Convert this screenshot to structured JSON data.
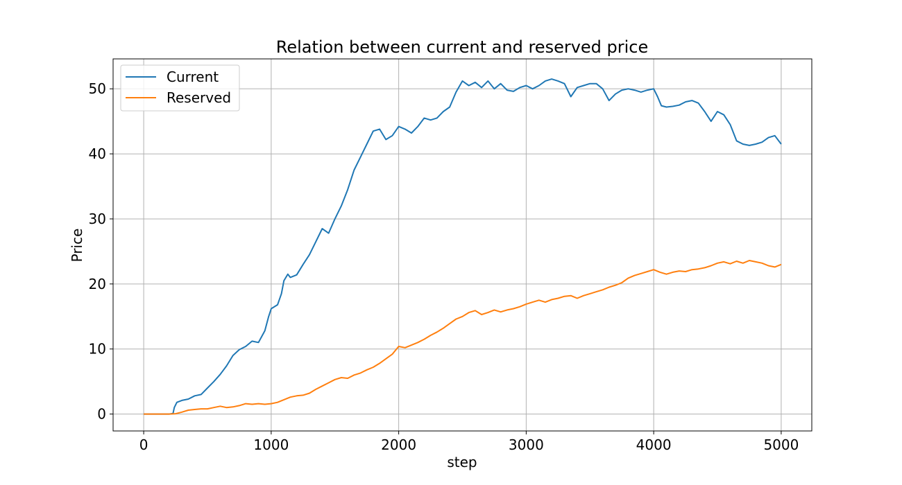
{
  "chart_data": {
    "type": "line",
    "title": "Relation between current and reserved price",
    "xlabel": "step",
    "ylabel": "Price",
    "xlim": [
      -240,
      5240
    ],
    "ylim": [
      -2.6,
      54.6
    ],
    "x_ticks": [
      0,
      1000,
      2000,
      3000,
      4000,
      5000
    ],
    "y_ticks": [
      0,
      10,
      20,
      30,
      40,
      50
    ],
    "grid": true,
    "legend_position": "top-left",
    "series": [
      {
        "name": "Current",
        "color": "#1f77b4",
        "points": [
          [
            0,
            0
          ],
          [
            100,
            0
          ],
          [
            200,
            0
          ],
          [
            230,
            0.1
          ],
          [
            240,
            1.0
          ],
          [
            260,
            1.8
          ],
          [
            300,
            2.1
          ],
          [
            350,
            2.3
          ],
          [
            400,
            2.8
          ],
          [
            450,
            3.0
          ],
          [
            500,
            4.0
          ],
          [
            550,
            5.0
          ],
          [
            600,
            6.1
          ],
          [
            650,
            7.4
          ],
          [
            700,
            9.0
          ],
          [
            750,
            9.9
          ],
          [
            800,
            10.4
          ],
          [
            850,
            11.2
          ],
          [
            900,
            11.0
          ],
          [
            950,
            12.8
          ],
          [
            980,
            15.0
          ],
          [
            1000,
            16.2
          ],
          [
            1050,
            16.8
          ],
          [
            1080,
            18.5
          ],
          [
            1100,
            20.5
          ],
          [
            1130,
            21.5
          ],
          [
            1150,
            21.0
          ],
          [
            1200,
            21.4
          ],
          [
            1250,
            23.0
          ],
          [
            1300,
            24.5
          ],
          [
            1350,
            26.5
          ],
          [
            1400,
            28.5
          ],
          [
            1450,
            27.8
          ],
          [
            1500,
            30.0
          ],
          [
            1550,
            32.0
          ],
          [
            1600,
            34.5
          ],
          [
            1650,
            37.5
          ],
          [
            1700,
            39.5
          ],
          [
            1750,
            41.5
          ],
          [
            1800,
            43.5
          ],
          [
            1850,
            43.8
          ],
          [
            1900,
            42.2
          ],
          [
            1950,
            42.8
          ],
          [
            2000,
            44.2
          ],
          [
            2050,
            43.8
          ],
          [
            2100,
            43.2
          ],
          [
            2150,
            44.2
          ],
          [
            2200,
            45.5
          ],
          [
            2250,
            45.2
          ],
          [
            2300,
            45.5
          ],
          [
            2350,
            46.5
          ],
          [
            2400,
            47.2
          ],
          [
            2450,
            49.5
          ],
          [
            2500,
            51.2
          ],
          [
            2550,
            50.5
          ],
          [
            2600,
            51.0
          ],
          [
            2650,
            50.2
          ],
          [
            2700,
            51.2
          ],
          [
            2750,
            50.0
          ],
          [
            2800,
            50.8
          ],
          [
            2850,
            49.8
          ],
          [
            2900,
            49.6
          ],
          [
            2950,
            50.2
          ],
          [
            3000,
            50.5
          ],
          [
            3050,
            50.0
          ],
          [
            3100,
            50.5
          ],
          [
            3150,
            51.2
          ],
          [
            3200,
            51.5
          ],
          [
            3250,
            51.2
          ],
          [
            3300,
            50.8
          ],
          [
            3350,
            48.8
          ],
          [
            3400,
            50.2
          ],
          [
            3450,
            50.5
          ],
          [
            3500,
            50.8
          ],
          [
            3550,
            50.8
          ],
          [
            3600,
            50.0
          ],
          [
            3650,
            48.2
          ],
          [
            3700,
            49.2
          ],
          [
            3750,
            49.8
          ],
          [
            3800,
            50.0
          ],
          [
            3850,
            49.8
          ],
          [
            3900,
            49.5
          ],
          [
            3950,
            49.8
          ],
          [
            4000,
            50.0
          ],
          [
            4030,
            48.8
          ],
          [
            4060,
            47.4
          ],
          [
            4100,
            47.2
          ],
          [
            4150,
            47.3
          ],
          [
            4200,
            47.5
          ],
          [
            4250,
            48.0
          ],
          [
            4300,
            48.2
          ],
          [
            4350,
            47.8
          ],
          [
            4400,
            46.5
          ],
          [
            4450,
            45.0
          ],
          [
            4500,
            46.5
          ],
          [
            4550,
            46.0
          ],
          [
            4600,
            44.5
          ],
          [
            4650,
            42.0
          ],
          [
            4700,
            41.5
          ],
          [
            4750,
            41.3
          ],
          [
            4800,
            41.5
          ],
          [
            4850,
            41.8
          ],
          [
            4900,
            42.5
          ],
          [
            4950,
            42.8
          ],
          [
            5000,
            41.5
          ]
        ]
      },
      {
        "name": "Reserved",
        "color": "#ff7f0e",
        "points": [
          [
            0,
            0
          ],
          [
            100,
            0
          ],
          [
            200,
            0
          ],
          [
            250,
            0.05
          ],
          [
            300,
            0.3
          ],
          [
            350,
            0.6
          ],
          [
            400,
            0.7
          ],
          [
            450,
            0.8
          ],
          [
            500,
            0.8
          ],
          [
            550,
            1.0
          ],
          [
            600,
            1.2
          ],
          [
            650,
            1.0
          ],
          [
            700,
            1.1
          ],
          [
            750,
            1.3
          ],
          [
            800,
            1.6
          ],
          [
            850,
            1.5
          ],
          [
            900,
            1.6
          ],
          [
            950,
            1.5
          ],
          [
            1000,
            1.6
          ],
          [
            1050,
            1.8
          ],
          [
            1100,
            2.2
          ],
          [
            1150,
            2.6
          ],
          [
            1200,
            2.8
          ],
          [
            1250,
            2.9
          ],
          [
            1300,
            3.2
          ],
          [
            1350,
            3.8
          ],
          [
            1400,
            4.3
          ],
          [
            1450,
            4.8
          ],
          [
            1500,
            5.3
          ],
          [
            1550,
            5.6
          ],
          [
            1600,
            5.5
          ],
          [
            1650,
            6.0
          ],
          [
            1700,
            6.3
          ],
          [
            1750,
            6.8
          ],
          [
            1800,
            7.2
          ],
          [
            1850,
            7.8
          ],
          [
            1900,
            8.5
          ],
          [
            1950,
            9.2
          ],
          [
            2000,
            10.4
          ],
          [
            2050,
            10.2
          ],
          [
            2100,
            10.6
          ],
          [
            2150,
            11.0
          ],
          [
            2200,
            11.5
          ],
          [
            2250,
            12.1
          ],
          [
            2300,
            12.6
          ],
          [
            2350,
            13.2
          ],
          [
            2400,
            13.9
          ],
          [
            2450,
            14.6
          ],
          [
            2500,
            15.0
          ],
          [
            2550,
            15.6
          ],
          [
            2600,
            15.9
          ],
          [
            2650,
            15.3
          ],
          [
            2700,
            15.6
          ],
          [
            2750,
            16.0
          ],
          [
            2800,
            15.7
          ],
          [
            2850,
            16.0
          ],
          [
            2900,
            16.2
          ],
          [
            2950,
            16.5
          ],
          [
            3000,
            16.9
          ],
          [
            3050,
            17.2
          ],
          [
            3100,
            17.5
          ],
          [
            3150,
            17.2
          ],
          [
            3200,
            17.6
          ],
          [
            3250,
            17.8
          ],
          [
            3300,
            18.1
          ],
          [
            3350,
            18.2
          ],
          [
            3400,
            17.8
          ],
          [
            3450,
            18.2
          ],
          [
            3500,
            18.5
          ],
          [
            3550,
            18.8
          ],
          [
            3600,
            19.1
          ],
          [
            3650,
            19.5
          ],
          [
            3700,
            19.8
          ],
          [
            3750,
            20.2
          ],
          [
            3800,
            20.9
          ],
          [
            3850,
            21.3
          ],
          [
            3900,
            21.6
          ],
          [
            3950,
            21.9
          ],
          [
            4000,
            22.2
          ],
          [
            4050,
            21.8
          ],
          [
            4100,
            21.5
          ],
          [
            4150,
            21.8
          ],
          [
            4200,
            22.0
          ],
          [
            4250,
            21.9
          ],
          [
            4300,
            22.2
          ],
          [
            4350,
            22.3
          ],
          [
            4400,
            22.5
          ],
          [
            4450,
            22.8
          ],
          [
            4500,
            23.2
          ],
          [
            4550,
            23.4
          ],
          [
            4600,
            23.1
          ],
          [
            4650,
            23.5
          ],
          [
            4700,
            23.2
          ],
          [
            4750,
            23.6
          ],
          [
            4800,
            23.4
          ],
          [
            4850,
            23.2
          ],
          [
            4900,
            22.8
          ],
          [
            4950,
            22.6
          ],
          [
            5000,
            23.0
          ]
        ]
      }
    ]
  }
}
